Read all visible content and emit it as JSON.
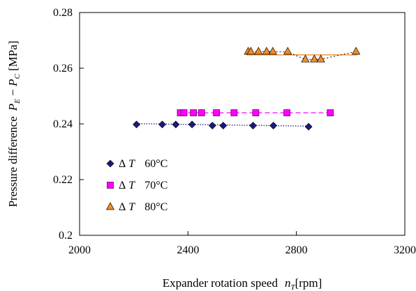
{
  "chart_data": {
    "type": "scatter",
    "xlabel": "Expander rotation speed",
    "xlabel_symbol": "n",
    "xlabel_sub": "T",
    "xlabel_unit": "[rpm]",
    "ylabel": "Pressure difference",
    "ylabel_symbol_1": "P",
    "ylabel_sub_1": "E",
    "ylabel_minus": " − ",
    "ylabel_symbol_2": "P",
    "ylabel_sub_2": "C",
    "ylabel_unit": " [MPa]",
    "xlim": [
      2000,
      3200
    ],
    "ylim": [
      0.2,
      0.28
    ],
    "x_ticks": [
      2000,
      2400,
      2800,
      3200
    ],
    "x_tick_labels": [
      "2000",
      "2400",
      "2800",
      "3200"
    ],
    "y_ticks": [
      0.2,
      0.22,
      0.24,
      0.26,
      0.28
    ],
    "y_tick_labels": [
      "0.2",
      "0.22",
      "0.24",
      "0.26",
      "0.28"
    ],
    "grid": false,
    "legend_position": "bottom-left",
    "series": [
      {
        "name": "ΔT  60°C",
        "legend_prefix": "Δ",
        "legend_symbol": "T",
        "legend_value": "60°C",
        "marker": "diamond",
        "color": "#1a1a7e",
        "line_style": "dotted",
        "line_color": "#1a1a7e",
        "x": [
          2210,
          2305,
          2355,
          2415,
          2490,
          2530,
          2640,
          2715,
          2845
        ],
        "y": [
          0.2398,
          0.2398,
          0.2398,
          0.2398,
          0.2394,
          0.2394,
          0.2394,
          0.2394,
          0.239
        ],
        "fit": [
          [
            2210,
            0.2401
          ],
          [
            2845,
            0.2392
          ]
        ]
      },
      {
        "name": "ΔT  70°C",
        "legend_prefix": "Δ",
        "legend_symbol": "T",
        "legend_value": "70°C",
        "marker": "square",
        "color": "#ff00ff",
        "line_style": "dashed",
        "line_color": "#ff00ff",
        "x": [
          2372,
          2385,
          2420,
          2450,
          2505,
          2570,
          2650,
          2765,
          2925
        ],
        "y": [
          0.244,
          0.244,
          0.244,
          0.244,
          0.244,
          0.244,
          0.244,
          0.244,
          0.244
        ],
        "fit": [
          [
            2372,
            0.244
          ],
          [
            2925,
            0.244
          ]
        ]
      },
      {
        "name": "ΔT  80°C",
        "legend_prefix": "Δ",
        "legend_symbol": "T",
        "legend_value": "80°C",
        "marker": "triangle",
        "color": "#f28c28",
        "line_style": "solid",
        "line_color": "#f28c28",
        "x": [
          2622,
          2632,
          2660,
          2690,
          2713,
          2768,
          2833,
          2866,
          2890,
          3020
        ],
        "y": [
          0.266,
          0.266,
          0.266,
          0.266,
          0.266,
          0.266,
          0.2632,
          0.2632,
          0.2632,
          0.266
        ],
        "fit": [
          [
            2615,
            0.2648
          ],
          [
            3025,
            0.2648
          ]
        ],
        "connector": [
          [
            2622,
            0.266
          ],
          [
            2660,
            0.266
          ],
          [
            2713,
            0.266
          ],
          [
            2768,
            0.2658
          ],
          [
            2800,
            0.2645
          ],
          [
            2833,
            0.2632
          ],
          [
            2866,
            0.2632
          ],
          [
            2890,
            0.2632
          ],
          [
            2950,
            0.2645
          ],
          [
            3020,
            0.266
          ]
        ]
      }
    ]
  }
}
